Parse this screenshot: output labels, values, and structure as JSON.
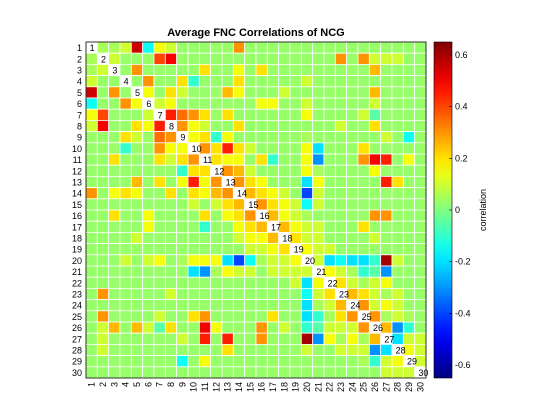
{
  "chart_data": {
    "type": "heatmap",
    "title": "Average FNC Correlations of NCG",
    "xlabel": "",
    "ylabel": "",
    "size": 30,
    "labels": [
      "1",
      "2",
      "3",
      "4",
      "5",
      "6",
      "7",
      "8",
      "9",
      "10",
      "11",
      "12",
      "13",
      "14",
      "15",
      "16",
      "17",
      "18",
      "19",
      "20",
      "21",
      "22",
      "23",
      "24",
      "25",
      "26",
      "27",
      "28",
      "29",
      "30"
    ],
    "colorbar": {
      "label": "correlation",
      "range": [
        -0.65,
        0.65
      ],
      "ticks": [
        -0.6,
        -0.4,
        -0.2,
        0,
        0.2,
        0.4,
        0.6
      ],
      "tick_labels": [
        "-0.6",
        "-0.4",
        "-0.2",
        "0",
        "0.2",
        "0.4",
        "0.6"
      ],
      "colormap": "jet"
    },
    "grid": true,
    "diagonal_labels": true,
    "pairs": [
      [
        2,
        1,
        0.05
      ],
      [
        3,
        1,
        0.05
      ],
      [
        4,
        1,
        0.1
      ],
      [
        5,
        1,
        0.55
      ],
      [
        6,
        1,
        -0.15
      ],
      [
        7,
        1,
        0.15
      ],
      [
        8,
        1,
        0.1
      ],
      [
        14,
        1,
        0.3
      ],
      [
        3,
        2,
        0.1
      ],
      [
        7,
        2,
        0.4
      ],
      [
        8,
        2,
        0.5
      ],
      [
        23,
        2,
        0.3
      ],
      [
        25,
        2,
        0.3
      ],
      [
        26,
        2,
        0.1
      ],
      [
        27,
        2,
        0.1
      ],
      [
        28,
        2,
        0.1
      ],
      [
        5,
        3,
        0.3
      ],
      [
        11,
        3,
        0.2
      ],
      [
        14,
        3,
        0.15
      ],
      [
        16,
        3,
        0.2
      ],
      [
        26,
        3,
        0.25
      ],
      [
        6,
        4,
        0.3
      ],
      [
        9,
        4,
        0.2
      ],
      [
        10,
        4,
        -0.1
      ],
      [
        14,
        4,
        0.2
      ],
      [
        20,
        4,
        0.1
      ],
      [
        6,
        5,
        0.15
      ],
      [
        8,
        5,
        0.2
      ],
      [
        9,
        5,
        0.1
      ],
      [
        13,
        5,
        0.25
      ],
      [
        14,
        5,
        0.15
      ],
      [
        18,
        5,
        0.1
      ],
      [
        26,
        5,
        0.25
      ],
      [
        7,
        6,
        0.1
      ],
      [
        8,
        6,
        0.15
      ],
      [
        16,
        6,
        0.15
      ],
      [
        17,
        6,
        0.15
      ],
      [
        20,
        6,
        0.1
      ],
      [
        26,
        6,
        0.1
      ],
      [
        8,
        7,
        0.45
      ],
      [
        9,
        7,
        0.35
      ],
      [
        10,
        7,
        0.3
      ],
      [
        11,
        7,
        0.2
      ],
      [
        13,
        7,
        0.2
      ],
      [
        20,
        7,
        0.15
      ],
      [
        25,
        7,
        0.1
      ],
      [
        26,
        7,
        -0.05
      ],
      [
        9,
        8,
        0.3
      ],
      [
        10,
        8,
        0.15
      ],
      [
        11,
        8,
        0.1
      ],
      [
        14,
        8,
        0.2
      ],
      [
        23,
        8,
        0.1
      ],
      [
        26,
        8,
        0.2
      ],
      [
        10,
        9,
        0.15
      ],
      [
        11,
        9,
        0.2
      ],
      [
        12,
        9,
        -0.1
      ],
      [
        13,
        9,
        0.15
      ],
      [
        20,
        9,
        0.05
      ],
      [
        27,
        9,
        0.1
      ],
      [
        29,
        9,
        -0.15
      ],
      [
        11,
        10,
        0.3
      ],
      [
        12,
        10,
        0.2
      ],
      [
        13,
        10,
        0.45
      ],
      [
        14,
        10,
        0.2
      ],
      [
        15,
        10,
        0.1
      ],
      [
        20,
        10,
        0.15
      ],
      [
        21,
        10,
        -0.2
      ],
      [
        25,
        10,
        0.2
      ],
      [
        12,
        11,
        0.2
      ],
      [
        13,
        11,
        0.15
      ],
      [
        14,
        11,
        0.15
      ],
      [
        16,
        11,
        0.2
      ],
      [
        17,
        11,
        -0.1
      ],
      [
        20,
        11,
        0.15
      ],
      [
        21,
        11,
        -0.3
      ],
      [
        25,
        11,
        0.3
      ],
      [
        26,
        11,
        0.5
      ],
      [
        27,
        11,
        0.45
      ],
      [
        29,
        11,
        0.15
      ],
      [
        13,
        12,
        0.3
      ],
      [
        14,
        12,
        0.25
      ],
      [
        15,
        12,
        0.1
      ],
      [
        20,
        12,
        0.15
      ],
      [
        21,
        12,
        0.05
      ],
      [
        26,
        12,
        0.15
      ],
      [
        14,
        13,
        0.3
      ],
      [
        15,
        13,
        0.2
      ],
      [
        16,
        13,
        0.15
      ],
      [
        20,
        13,
        -0.2
      ],
      [
        21,
        13,
        0.15
      ],
      [
        27,
        13,
        0.45
      ],
      [
        28,
        13,
        0.2
      ],
      [
        15,
        14,
        0.25
      ],
      [
        16,
        14,
        0.2
      ],
      [
        17,
        14,
        0.15
      ],
      [
        18,
        14,
        0.1
      ],
      [
        20,
        14,
        -0.4
      ],
      [
        21,
        14,
        0.1
      ],
      [
        16,
        15,
        0.3
      ],
      [
        17,
        15,
        0.2
      ],
      [
        18,
        15,
        0.15
      ],
      [
        19,
        15,
        0.1
      ],
      [
        20,
        15,
        -0.15
      ],
      [
        21,
        15,
        0.1
      ],
      [
        17,
        16,
        0.25
      ],
      [
        18,
        16,
        0.15
      ],
      [
        19,
        16,
        0.1
      ],
      [
        20,
        16,
        0.05
      ],
      [
        26,
        16,
        0.3
      ],
      [
        27,
        16,
        0.3
      ],
      [
        18,
        17,
        0.25
      ],
      [
        19,
        17,
        0.15
      ],
      [
        20,
        17,
        0.1
      ],
      [
        21,
        17,
        0.1
      ],
      [
        25,
        17,
        0.2
      ],
      [
        19,
        18,
        0.2
      ],
      [
        20,
        18,
        0.1
      ],
      [
        21,
        18,
        0.1
      ],
      [
        26,
        18,
        0.1
      ],
      [
        20,
        19,
        0.15
      ],
      [
        21,
        19,
        0.1
      ],
      [
        22,
        19,
        0.1
      ],
      [
        21,
        20,
        0.1
      ],
      [
        22,
        20,
        -0.2
      ],
      [
        23,
        20,
        -0.15
      ],
      [
        24,
        20,
        -0.2
      ],
      [
        25,
        20,
        -0.2
      ],
      [
        26,
        20,
        -0.1
      ],
      [
        27,
        20,
        0.6
      ],
      [
        28,
        20,
        0.1
      ],
      [
        22,
        21,
        0.15
      ],
      [
        23,
        21,
        0.1
      ],
      [
        24,
        21,
        0.05
      ],
      [
        25,
        21,
        -0.1
      ],
      [
        26,
        21,
        -0.05
      ],
      [
        27,
        21,
        -0.3
      ],
      [
        23,
        22,
        0.2
      ],
      [
        24,
        22,
        0.1
      ],
      [
        25,
        22,
        0.05
      ],
      [
        26,
        22,
        0.1
      ],
      [
        27,
        22,
        0.15
      ],
      [
        24,
        23,
        0.25
      ],
      [
        25,
        23,
        0.2
      ],
      [
        26,
        23,
        0.1
      ],
      [
        27,
        23,
        0.05
      ],
      [
        28,
        23,
        0.1
      ],
      [
        25,
        24,
        0.3
      ],
      [
        26,
        24,
        0.1
      ],
      [
        27,
        24,
        0.15
      ],
      [
        28,
        24,
        0.1
      ],
      [
        26,
        25,
        0.3
      ],
      [
        27,
        25,
        0.05
      ],
      [
        28,
        25,
        0.1
      ],
      [
        29,
        25,
        0.05
      ],
      [
        27,
        26,
        0.25
      ],
      [
        28,
        26,
        -0.3
      ],
      [
        29,
        26,
        -0.1
      ],
      [
        28,
        27,
        -0.2
      ],
      [
        29,
        27,
        0.1
      ],
      [
        30,
        27,
        0.1
      ],
      [
        29,
        28,
        0.15
      ],
      [
        30,
        28,
        0.1
      ],
      [
        30,
        29,
        0.1
      ]
    ]
  }
}
